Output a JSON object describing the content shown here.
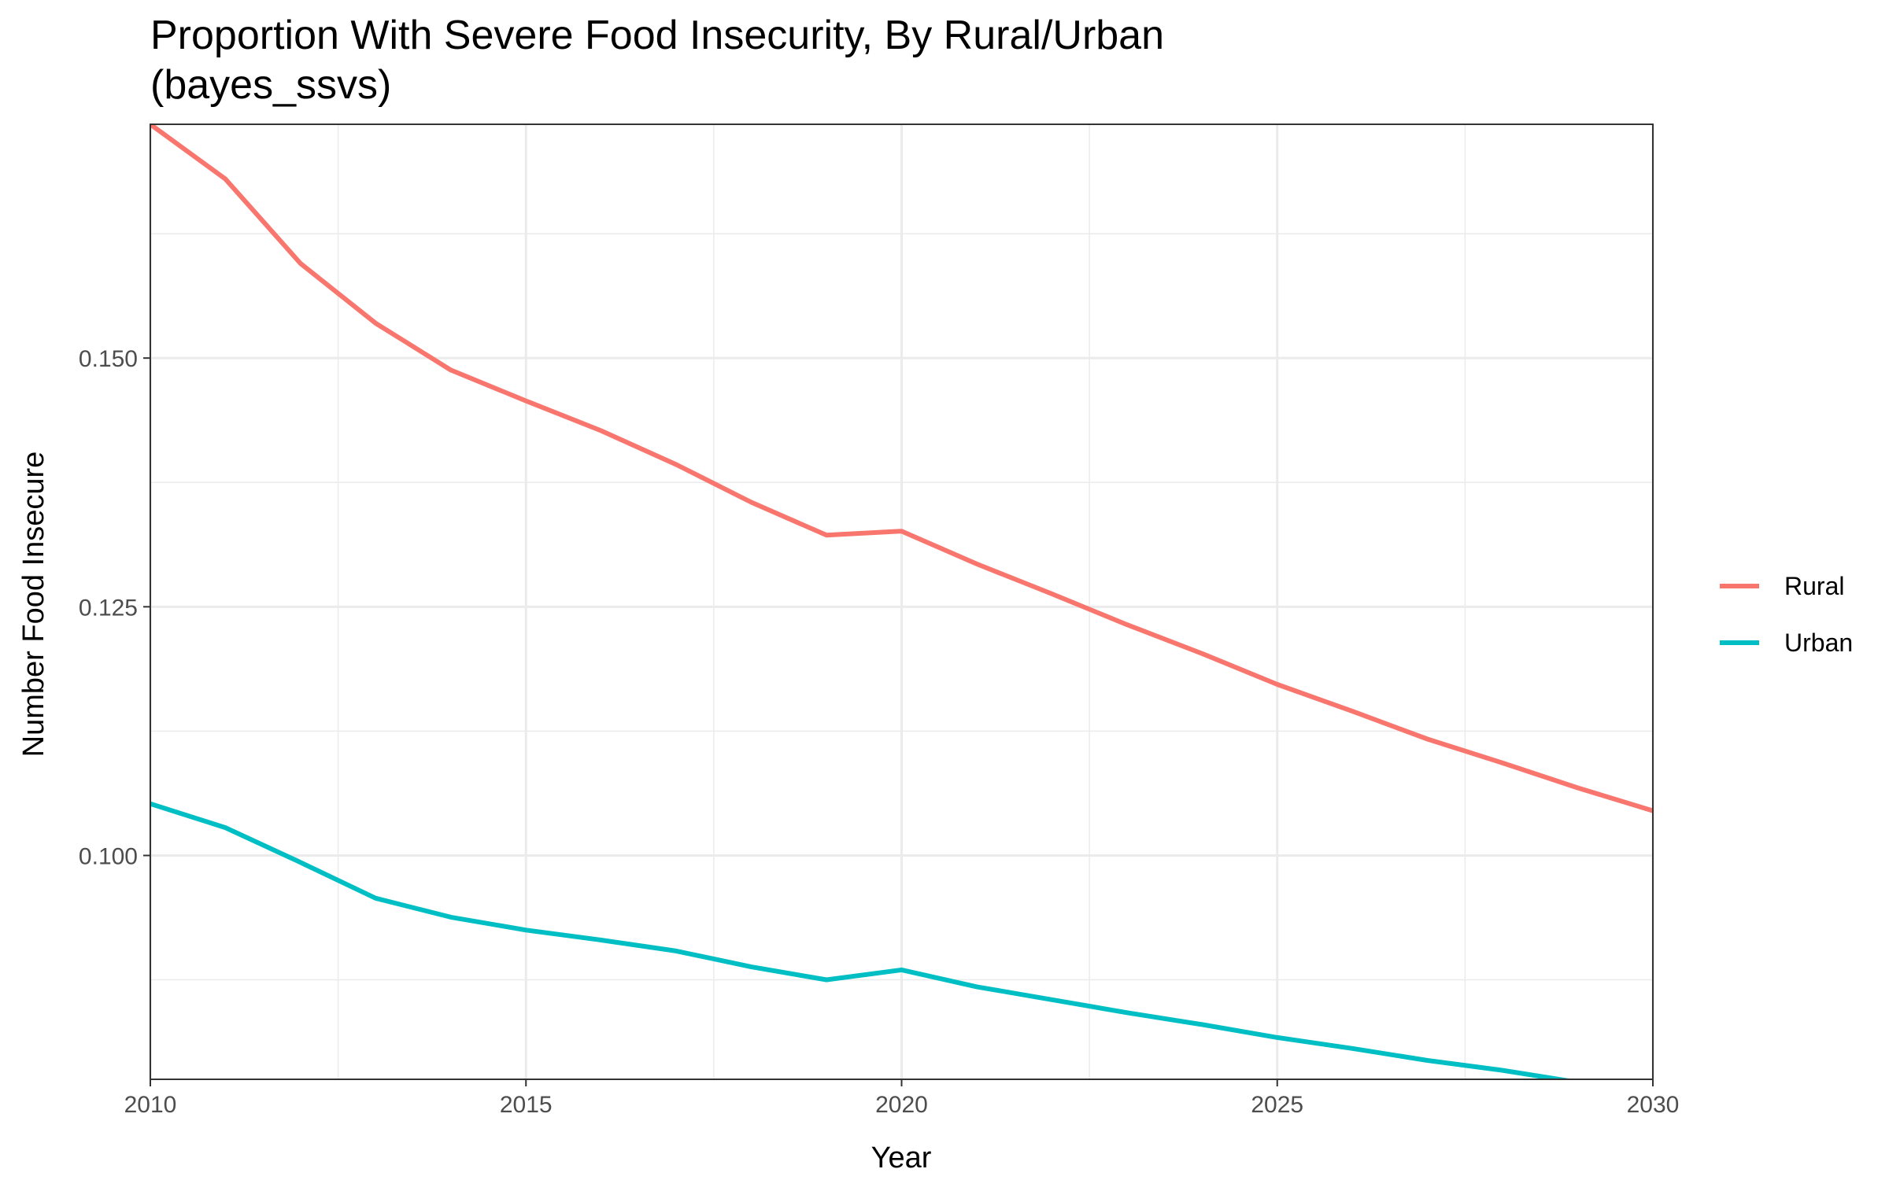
{
  "chart_data": {
    "type": "line",
    "title_line1": "Proportion With Severe Food Insecurity, By Rural/Urban",
    "title_line2": "(bayes_ssvs)",
    "xlabel": "Year",
    "ylabel": "Number Food Insecure",
    "xlim": [
      2010,
      2030
    ],
    "ylim": [
      0.0775,
      0.1735
    ],
    "x_ticks": [
      2010,
      2015,
      2020,
      2025,
      2030
    ],
    "x_tick_labels": [
      "2010",
      "2015",
      "2020",
      "2025",
      "2030"
    ],
    "y_ticks": [
      0.1,
      0.125,
      0.15
    ],
    "y_tick_labels": [
      "0.100",
      "0.125",
      "0.150"
    ],
    "grid": true,
    "legend_position": "right",
    "x": [
      2010,
      2011,
      2012,
      2013,
      2014,
      2015,
      2016,
      2017,
      2018,
      2019,
      2020,
      2021,
      2022,
      2023,
      2024,
      2025,
      2026,
      2027,
      2028,
      2029,
      2030
    ],
    "series": [
      {
        "name": "Rural",
        "color": "#F8766D",
        "values": [
          0.1735,
          0.168,
          0.1595,
          0.1535,
          0.1488,
          0.1457,
          0.1427,
          0.1393,
          0.1355,
          0.1322,
          0.1326,
          0.1293,
          0.1263,
          0.1232,
          0.1203,
          0.1172,
          0.1145,
          0.1117,
          0.1093,
          0.1068,
          0.1045
        ]
      },
      {
        "name": "Urban",
        "color": "#00BFC4",
        "values": [
          0.1052,
          0.1028,
          0.0993,
          0.0957,
          0.0938,
          0.0925,
          0.0915,
          0.0904,
          0.0888,
          0.0875,
          0.0885,
          0.0868,
          0.0855,
          0.0842,
          0.083,
          0.0817,
          0.0806,
          0.0794,
          0.0784,
          0.0772,
          0.076
        ]
      }
    ]
  }
}
